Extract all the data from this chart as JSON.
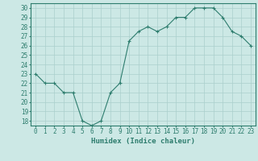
{
  "x": [
    0,
    1,
    2,
    3,
    4,
    5,
    6,
    7,
    8,
    9,
    10,
    11,
    12,
    13,
    14,
    15,
    16,
    17,
    18,
    19,
    20,
    21,
    22,
    23
  ],
  "y": [
    23,
    22,
    22,
    21,
    21,
    18,
    17.5,
    18,
    21,
    22,
    26.5,
    27.5,
    28,
    27.5,
    28,
    29,
    29,
    30,
    30,
    30,
    29,
    27.5,
    27,
    26
  ],
  "line_color": "#2e7d6e",
  "marker": "+",
  "bg_color": "#cce8e5",
  "grid_color": "#aacfcc",
  "xlabel": "Humidex (Indice chaleur)",
  "xlim": [
    -0.5,
    23.5
  ],
  "ylim": [
    17.5,
    30.5
  ],
  "yticks": [
    18,
    19,
    20,
    21,
    22,
    23,
    24,
    25,
    26,
    27,
    28,
    29,
    30
  ],
  "xticks": [
    0,
    1,
    2,
    3,
    4,
    5,
    6,
    7,
    8,
    9,
    10,
    11,
    12,
    13,
    14,
    15,
    16,
    17,
    18,
    19,
    20,
    21,
    22,
    23
  ],
  "tick_color": "#2e7d6e",
  "label_fontsize": 5.5,
  "xlabel_fontsize": 6.5,
  "spine_color": "#2e7d6e"
}
